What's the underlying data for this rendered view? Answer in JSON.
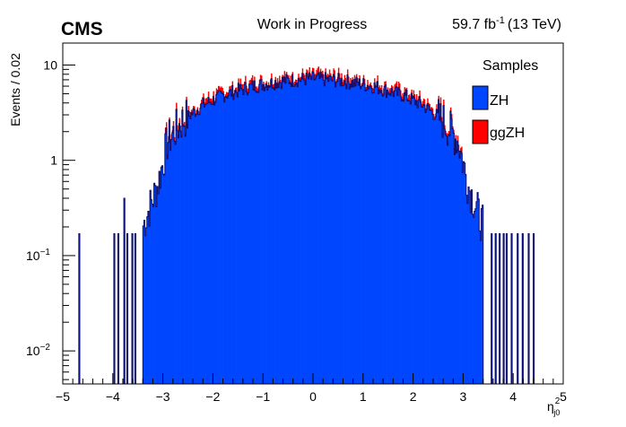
{
  "header": {
    "experiment": "CMS",
    "status": "Work in Progress",
    "lumi_main": "59.7 fb",
    "lumi_sup": "-1",
    "lumi_energy": "(13 TeV)"
  },
  "chart_data": {
    "type": "bar",
    "xlabel_main": "η",
    "xlabel_sup": "2",
    "xlabel_sub": "j0",
    "ylabel": "Events / 0.02",
    "xlim": [
      -5,
      5
    ],
    "ylim": [
      0.0045,
      17
    ],
    "yscale": "log",
    "bin_width": 0.02,
    "stacked": true,
    "x_tick_labels": [
      "−5",
      "−4",
      "−3",
      "−2",
      "−1",
      "0",
      "1",
      "2",
      "3",
      "4",
      "5"
    ],
    "y_ticks": [
      {
        "value": 0.01,
        "base": "10",
        "exp": "−2"
      },
      {
        "value": 0.1,
        "base": "10",
        "exp": "−1"
      },
      {
        "value": 1,
        "base": "1",
        "exp": ""
      },
      {
        "value": 10,
        "base": "10",
        "exp": ""
      }
    ],
    "legend": {
      "title": "Samples",
      "position": "top-right",
      "entries": [
        {
          "label": "ZH",
          "color": "#0046ff"
        },
        {
          "label": "ggZH",
          "color": "#ff0000"
        }
      ]
    },
    "series": [
      {
        "name": "ZH",
        "color": "#0046ff",
        "outline": "#0d0d6b",
        "profile": [
          {
            "x": -3.4,
            "y": 0.2
          },
          {
            "x": -3.1,
            "y": 0.55
          },
          {
            "x": -2.9,
            "y": 1.6
          },
          {
            "x": -2.6,
            "y": 2.6
          },
          {
            "x": -2.2,
            "y": 3.8
          },
          {
            "x": -1.8,
            "y": 4.8
          },
          {
            "x": -1.2,
            "y": 6.0
          },
          {
            "x": -0.6,
            "y": 6.8
          },
          {
            "x": 0.0,
            "y": 7.2
          },
          {
            "x": 0.6,
            "y": 6.8
          },
          {
            "x": 1.2,
            "y": 6.0
          },
          {
            "x": 1.8,
            "y": 4.8
          },
          {
            "x": 2.2,
            "y": 3.8
          },
          {
            "x": 2.6,
            "y": 2.6
          },
          {
            "x": 2.9,
            "y": 1.6
          },
          {
            "x": 3.1,
            "y": 0.55
          },
          {
            "x": 3.4,
            "y": 0.2
          }
        ],
        "isolated_bins": [
          {
            "x": -4.66,
            "y": 0.17
          },
          {
            "x": -3.98,
            "y": 0.17
          },
          {
            "x": -3.9,
            "y": 0.17
          },
          {
            "x": -3.78,
            "y": 0.4
          },
          {
            "x": -3.7,
            "y": 0.17
          },
          {
            "x": -3.62,
            "y": 0.17
          },
          {
            "x": -3.56,
            "y": 0.17
          },
          {
            "x": 3.56,
            "y": 0.17
          },
          {
            "x": 3.64,
            "y": 0.17
          },
          {
            "x": 3.72,
            "y": 0.17
          },
          {
            "x": 3.8,
            "y": 0.17
          },
          {
            "x": 3.88,
            "y": 0.17
          },
          {
            "x": 3.96,
            "y": 0.17
          },
          {
            "x": 4.08,
            "y": 0.17
          },
          {
            "x": 4.18,
            "y": 0.17
          },
          {
            "x": 4.3,
            "y": 0.17
          },
          {
            "x": 4.4,
            "y": 0.17
          }
        ]
      },
      {
        "name": "ggZH",
        "color": "#ff0000",
        "fraction_of_zh": 0.12
      }
    ]
  }
}
